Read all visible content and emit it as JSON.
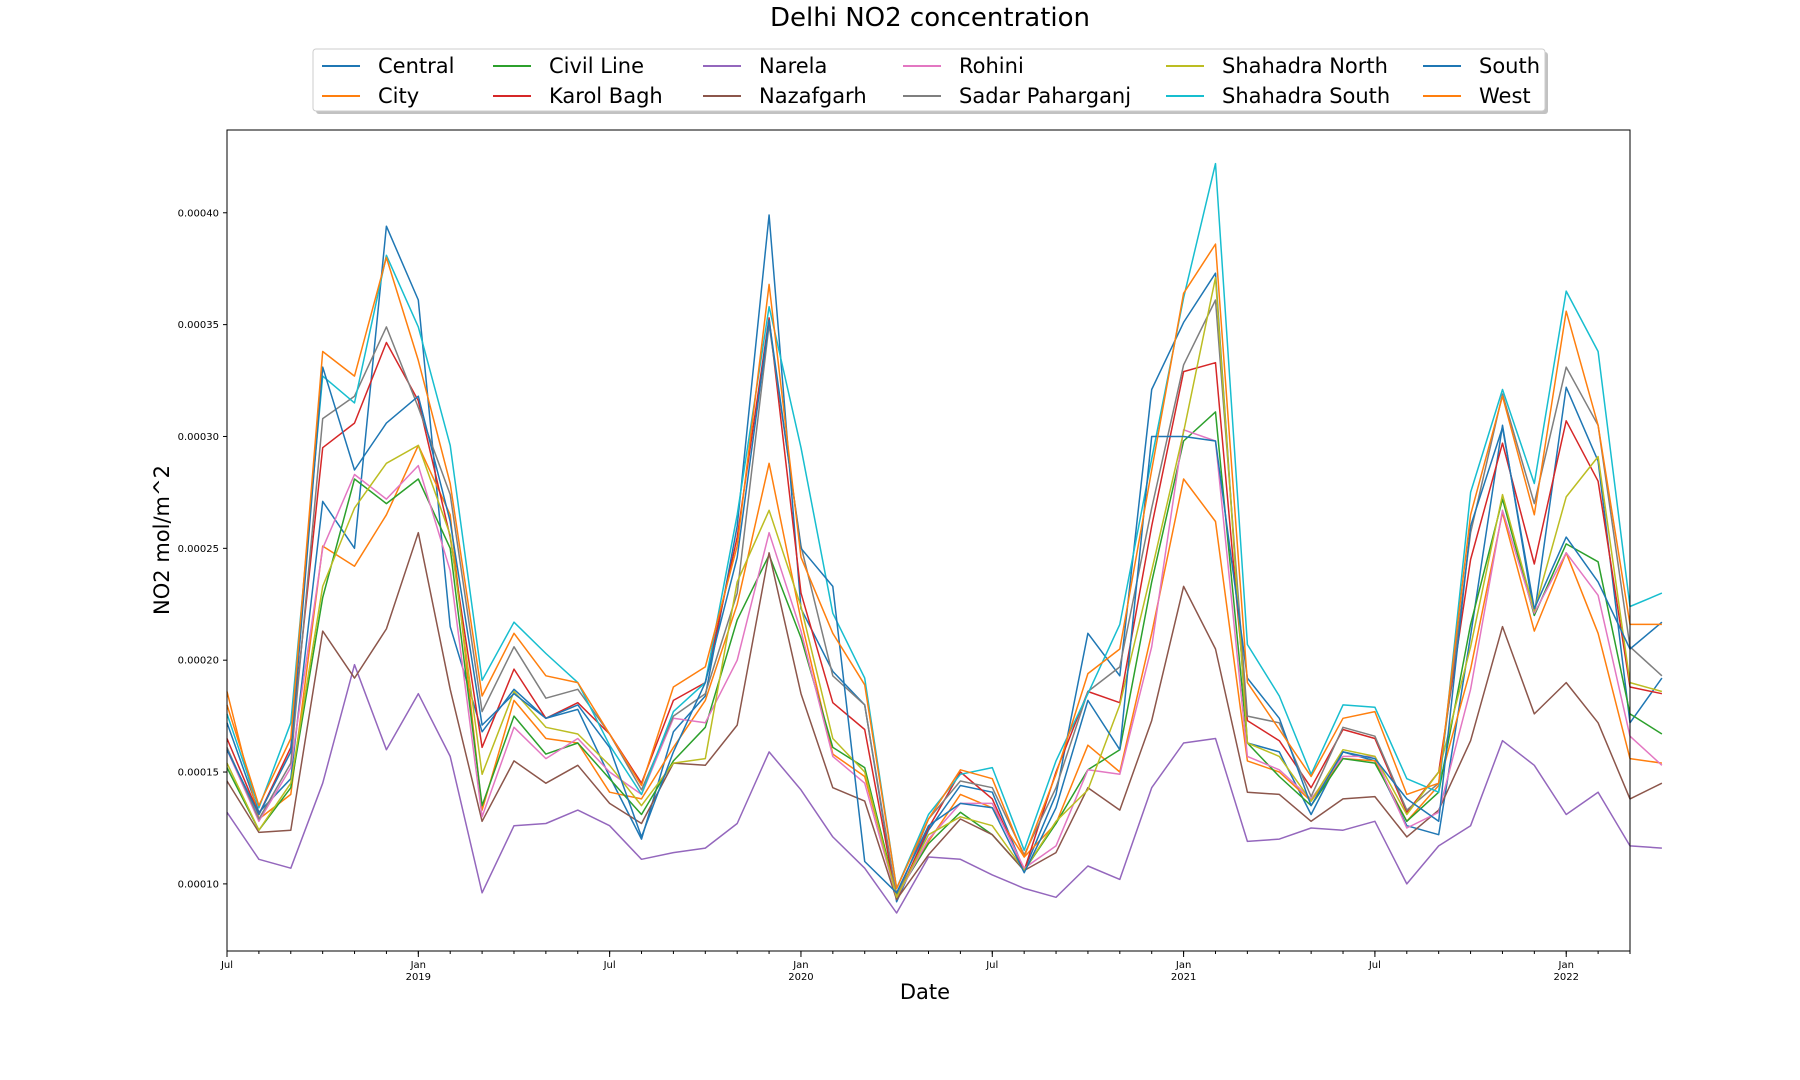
{
  "chart_data": {
    "type": "line",
    "title": "Delhi NO2 concentration",
    "xlabel": "Date",
    "ylabel": "NO2 mol/m^2",
    "x_range": [
      "2018-07",
      "2022-03"
    ],
    "ylim": [
      7e-05,
      0.000437
    ],
    "y_ticks": [
      0.0001,
      0.00015,
      0.0002,
      0.00025,
      0.0003,
      0.00035,
      0.0004
    ],
    "y_tick_labels": [
      "0.00010",
      "0.00015",
      "0.00020",
      "0.00025",
      "0.00030",
      "0.00035",
      "0.00040"
    ],
    "x_ticks": [
      {
        "date": "2018-07",
        "label": "Jul",
        "sub": ""
      },
      {
        "date": "2019-01",
        "label": "Jan",
        "sub": "2019"
      },
      {
        "date": "2019-07",
        "label": "Jul",
        "sub": ""
      },
      {
        "date": "2020-01",
        "label": "Jan",
        "sub": "2020"
      },
      {
        "date": "2020-07",
        "label": "Jul",
        "sub": ""
      },
      {
        "date": "2021-01",
        "label": "Jan",
        "sub": "2021"
      },
      {
        "date": "2021-07",
        "label": "Jul",
        "sub": ""
      },
      {
        "date": "2022-01",
        "label": "Jan",
        "sub": "2022"
      }
    ],
    "grid": false,
    "legend_position": "top-center",
    "x": [
      "2018-07",
      "2018-08",
      "2018-09",
      "2018-10",
      "2018-11",
      "2018-12",
      "2019-01",
      "2019-02",
      "2019-03",
      "2019-04",
      "2019-05",
      "2019-06",
      "2019-07",
      "2019-08",
      "2019-09",
      "2019-10",
      "2019-11",
      "2019-12",
      "2020-01",
      "2020-02",
      "2020-03",
      "2020-04",
      "2020-05",
      "2020-06",
      "2020-07",
      "2020-08",
      "2020-09",
      "2020-10",
      "2020-11",
      "2020-12",
      "2021-01",
      "2021-02",
      "2021-03",
      "2021-04",
      "2021-05",
      "2021-06",
      "2021-07",
      "2021-08",
      "2021-09",
      "2021-10",
      "2021-11",
      "2021-12",
      "2022-01",
      "2022-02",
      "2022-03",
      "2022-04"
    ],
    "series": [
      {
        "name": "Central",
        "color": "#1f77b4",
        "values": [
          0.000172,
          0.000132,
          0.000147,
          0.000271,
          0.00025,
          0.000394,
          0.000361,
          0.000215,
          0.000168,
          0.000187,
          0.000174,
          0.000178,
          0.000148,
          0.00012,
          0.000168,
          0.000184,
          0.00026,
          0.000399,
          0.000223,
          0.000195,
          0.00018,
          9.2e-05,
          0.000124,
          0.000144,
          0.000141,
          0.000106,
          0.00014,
          0.000212,
          0.000193,
          0.000321,
          0.000351,
          0.000373,
          0.000163,
          0.000159,
          0.000131,
          0.000159,
          0.000155,
          0.000126,
          0.000122,
          0.000211,
          0.000305,
          0.00022,
          0.000322,
          0.000289,
          0.000172,
          0.000192
        ]
      },
      {
        "name": "City",
        "color": "#ff7f0e",
        "values": [
          0.000186,
          0.000129,
          0.00014,
          0.000251,
          0.000242,
          0.000265,
          0.000296,
          0.000265,
          0.000133,
          0.000182,
          0.000165,
          0.000163,
          0.000141,
          0.000138,
          0.000161,
          0.000182,
          0.000225,
          0.000288,
          0.000218,
          0.000158,
          0.000148,
          9.6e-05,
          0.000119,
          0.00014,
          0.000134,
          0.000112,
          0.000127,
          0.000162,
          0.00015,
          0.000212,
          0.000281,
          0.000262,
          0.000155,
          0.00015,
          0.000137,
          0.000156,
          0.000155,
          0.000128,
          0.000144,
          0.000196,
          0.000266,
          0.000213,
          0.000248,
          0.000212,
          0.000156,
          0.000154
        ]
      },
      {
        "name": "Civil Line",
        "color": "#2ca02c",
        "values": [
          0.000152,
          0.000124,
          0.000143,
          0.000228,
          0.000281,
          0.00027,
          0.000281,
          0.00025,
          0.000135,
          0.000175,
          0.000158,
          0.000163,
          0.000147,
          0.000131,
          0.000155,
          0.00017,
          0.000218,
          0.000247,
          0.00021,
          0.000161,
          0.000152,
          9.5e-05,
          0.000118,
          0.000132,
          0.000122,
          0.000106,
          0.000127,
          0.000151,
          0.00016,
          0.000235,
          0.000298,
          0.000311,
          0.000163,
          0.000148,
          0.000135,
          0.000156,
          0.000154,
          0.000128,
          0.000141,
          0.000216,
          0.000272,
          0.00022,
          0.000252,
          0.000244,
          0.000176,
          0.000167
        ]
      },
      {
        "name": "Karol Bagh",
        "color": "#d62728",
        "values": [
          0.000165,
          0.000131,
          0.000161,
          0.000295,
          0.000306,
          0.000342,
          0.000316,
          0.000255,
          0.000161,
          0.000196,
          0.000174,
          0.000181,
          0.000167,
          0.000145,
          0.000182,
          0.00019,
          0.000255,
          0.000353,
          0.00023,
          0.000181,
          0.000169,
          9.3e-05,
          0.000125,
          0.00015,
          0.000138,
          0.000106,
          0.00015,
          0.000186,
          0.000181,
          0.00026,
          0.000329,
          0.000333,
          0.000173,
          0.000164,
          0.000143,
          0.000169,
          0.000165,
          0.000132,
          0.00015,
          0.000245,
          0.000297,
          0.000243,
          0.000307,
          0.00028,
          0.000188,
          0.000185
        ]
      },
      {
        "name": "Narela",
        "color": "#9467bd",
        "values": [
          0.000132,
          0.000111,
          0.000107,
          0.000145,
          0.000198,
          0.00016,
          0.000185,
          0.000157,
          9.6e-05,
          0.000126,
          0.000127,
          0.000133,
          0.000126,
          0.000111,
          0.000114,
          0.000116,
          0.000127,
          0.000159,
          0.000142,
          0.000121,
          0.000107,
          8.7e-05,
          0.000112,
          0.000111,
          0.000104,
          9.8e-05,
          9.4e-05,
          0.000108,
          0.000102,
          0.000143,
          0.000163,
          0.000165,
          0.000119,
          0.00012,
          0.000125,
          0.000124,
          0.000128,
          0.0001,
          0.000117,
          0.000126,
          0.000164,
          0.000153,
          0.000131,
          0.000141,
          0.000117,
          0.000116
        ]
      },
      {
        "name": "Nazafgarh",
        "color": "#8c564b",
        "values": [
          0.000146,
          0.000123,
          0.000124,
          0.000213,
          0.000192,
          0.000214,
          0.000257,
          0.000187,
          0.000128,
          0.000155,
          0.000145,
          0.000153,
          0.000136,
          0.000127,
          0.000154,
          0.000153,
          0.000171,
          0.000248,
          0.000185,
          0.000143,
          0.000137,
          9.3e-05,
          0.000113,
          0.000129,
          0.000122,
          0.000106,
          0.000114,
          0.000143,
          0.000133,
          0.000173,
          0.000233,
          0.000205,
          0.000141,
          0.00014,
          0.000128,
          0.000138,
          0.000139,
          0.000121,
          0.000133,
          0.000164,
          0.000215,
          0.000176,
          0.00019,
          0.000172,
          0.000138,
          0.000145
        ]
      },
      {
        "name": "Rohini",
        "color": "#e377c2",
        "values": [
          0.00016,
          0.000128,
          0.000152,
          0.00025,
          0.000283,
          0.000272,
          0.000287,
          0.00024,
          0.00013,
          0.00017,
          0.000156,
          0.000165,
          0.00015,
          0.00014,
          0.000174,
          0.000172,
          0.0002,
          0.000257,
          0.000213,
          0.000157,
          0.000145,
          9.4e-05,
          0.00012,
          0.000136,
          0.000136,
          0.000107,
          0.000117,
          0.000151,
          0.000149,
          0.000206,
          0.000303,
          0.000298,
          0.000157,
          0.000151,
          0.000138,
          0.000157,
          0.000157,
          0.000125,
          0.000132,
          0.000187,
          0.000267,
          0.000221,
          0.000248,
          0.000229,
          0.000166,
          0.000153
        ]
      },
      {
        "name": "Sadar Paharganj",
        "color": "#7f7f7f",
        "values": [
          0.000161,
          0.000129,
          0.000154,
          0.000308,
          0.000318,
          0.000349,
          0.000313,
          0.000274,
          0.000177,
          0.000206,
          0.000183,
          0.000187,
          0.000167,
          0.000142,
          0.000175,
          0.000185,
          0.00023,
          0.00035,
          0.000251,
          0.000193,
          0.00018,
          9.4e-05,
          0.000129,
          0.000146,
          0.000143,
          0.000113,
          0.000143,
          0.000186,
          0.000197,
          0.000268,
          0.000332,
          0.000361,
          0.000175,
          0.000172,
          0.000139,
          0.00017,
          0.000166,
          0.000133,
          0.000145,
          0.000257,
          0.000319,
          0.00027,
          0.000331,
          0.000305,
          0.000206,
          0.000193
        ]
      },
      {
        "name": "Shahadra North",
        "color": "#bcbd22",
        "values": [
          0.000154,
          0.000124,
          0.000145,
          0.000233,
          0.000268,
          0.000288,
          0.000296,
          0.000256,
          0.000149,
          0.000186,
          0.00017,
          0.000167,
          0.000153,
          0.000135,
          0.000154,
          0.000156,
          0.000235,
          0.000267,
          0.000224,
          0.000165,
          0.00015,
          9.4e-05,
          0.000122,
          0.00013,
          0.000126,
          0.000106,
          0.000128,
          0.000142,
          0.00018,
          0.00024,
          0.000302,
          0.000371,
          0.000163,
          0.000157,
          0.000137,
          0.00016,
          0.000157,
          0.000131,
          0.00015,
          0.000206,
          0.000274,
          0.000222,
          0.000273,
          0.000291,
          0.00019,
          0.000186
        ]
      },
      {
        "name": "Shahadra South",
        "color": "#17becf",
        "values": [
          0.000176,
          0.000134,
          0.000172,
          0.000327,
          0.000315,
          0.000381,
          0.000349,
          0.000296,
          0.000191,
          0.000217,
          0.000203,
          0.00019,
          0.000162,
          0.00014,
          0.000177,
          0.00019,
          0.000265,
          0.000358,
          0.000295,
          0.000221,
          0.000192,
          9.8e-05,
          0.000131,
          0.000149,
          0.000152,
          0.000115,
          0.000155,
          0.000185,
          0.000216,
          0.00029,
          0.000362,
          0.000422,
          0.000207,
          0.000184,
          0.000149,
          0.00018,
          0.000179,
          0.000147,
          0.000141,
          0.000275,
          0.000321,
          0.000279,
          0.000365,
          0.000338,
          0.000224,
          0.00023
        ]
      },
      {
        "name": "South",
        "color": "#1f77b4",
        "values": [
          0.00016,
          0.000131,
          0.000159,
          0.000331,
          0.000285,
          0.000306,
          0.000318,
          0.000262,
          0.000171,
          0.000185,
          0.000174,
          0.00018,
          0.000161,
          0.000121,
          0.000159,
          0.00019,
          0.000246,
          0.000352,
          0.00025,
          0.000233,
          0.00011,
          9.6e-05,
          0.000126,
          0.000136,
          0.000134,
          0.000105,
          0.000134,
          0.000182,
          0.00016,
          0.0003,
          0.0003,
          0.000298,
          0.000192,
          0.000174,
          0.000135,
          0.000159,
          0.000156,
          0.000138,
          0.000128,
          0.00026,
          0.000304,
          0.000223,
          0.000255,
          0.000235,
          0.000205,
          0.000217
        ]
      },
      {
        "name": "West",
        "color": "#ff7f0e",
        "values": [
          0.00018,
          0.000135,
          0.000165,
          0.000338,
          0.000327,
          0.00038,
          0.000334,
          0.000279,
          0.000184,
          0.000212,
          0.000193,
          0.00019,
          0.000167,
          0.000144,
          0.000188,
          0.000197,
          0.000251,
          0.000368,
          0.000246,
          0.000212,
          0.000189,
          9.8e-05,
          0.000129,
          0.000151,
          0.000147,
          0.000112,
          0.000149,
          0.000194,
          0.000205,
          0.000285,
          0.000364,
          0.000386,
          0.00019,
          0.000169,
          0.000148,
          0.000174,
          0.000177,
          0.00014,
          0.000145,
          0.000265,
          0.000318,
          0.000265,
          0.000356,
          0.000305,
          0.000216,
          0.000216
        ]
      }
    ]
  }
}
